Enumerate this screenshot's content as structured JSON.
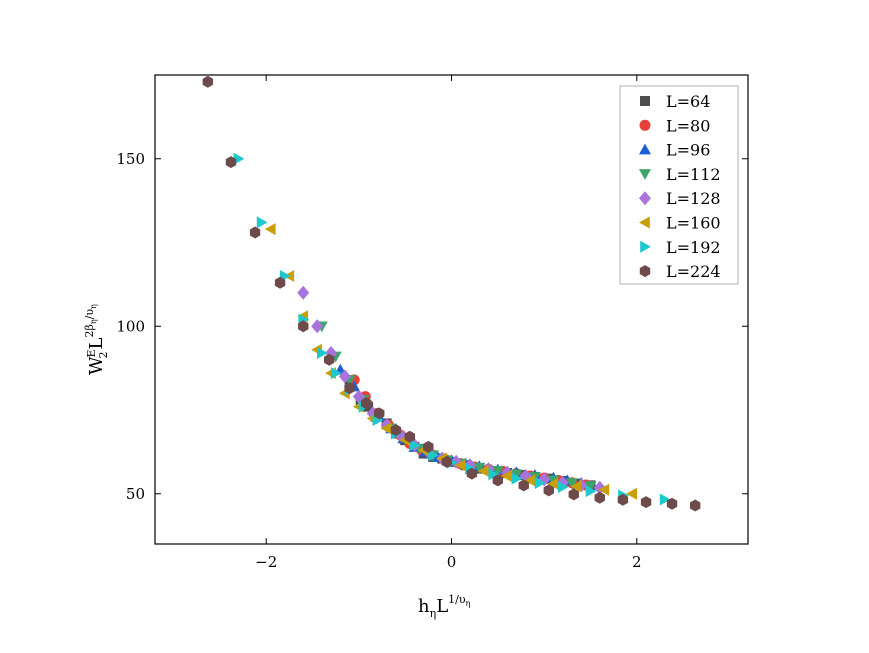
{
  "chart_data": {
    "type": "scatter",
    "xlim": [
      -3.2,
      3.2
    ],
    "ylim": [
      35,
      175
    ],
    "xticks": [
      {
        "value": -2,
        "label": "−2"
      },
      {
        "value": 0,
        "label": "0"
      },
      {
        "value": 2,
        "label": "2"
      }
    ],
    "yticks": [
      {
        "value": 50,
        "label": "50"
      },
      {
        "value": 100,
        "label": "100"
      },
      {
        "value": 150,
        "label": "150"
      }
    ],
    "xlabel": {
      "base1": "h",
      "sub1": "η",
      "base2": "L",
      "sup": "1/υ",
      "supsub": "η"
    },
    "ylabel": {
      "base1": "W",
      "sub1": "2",
      "sup1": "E",
      "base2": "L",
      "sup2": "2β",
      "sup2sub": "η",
      "sup2tail": "/υ",
      "sup2tailsub": "η"
    },
    "grid": false,
    "legend_position": "top-right",
    "series": [
      {
        "name": "L=64",
        "marker": "square",
        "color": "#4d4d4d",
        "points": [
          [
            -1.1,
            83
          ],
          [
            -0.98,
            78
          ],
          [
            -0.9,
            76
          ],
          [
            -0.82,
            73
          ],
          [
            -0.7,
            71
          ],
          [
            -0.6,
            68
          ],
          [
            -0.5,
            66
          ],
          [
            -0.4,
            64
          ],
          [
            -0.3,
            62
          ],
          [
            -0.2,
            61
          ],
          [
            -0.1,
            60.5
          ],
          [
            0.0,
            59.5
          ],
          [
            0.15,
            58.5
          ],
          [
            0.3,
            57.5
          ],
          [
            0.45,
            56.8
          ],
          [
            0.6,
            56.2
          ],
          [
            0.75,
            55.6
          ],
          [
            0.9,
            55
          ],
          [
            1.05,
            54.5
          ],
          [
            1.2,
            53.8
          ],
          [
            1.35,
            53
          ],
          [
            1.5,
            52.5
          ]
        ]
      },
      {
        "name": "L=80",
        "marker": "circle",
        "color": "#e8403a",
        "points": [
          [
            -1.05,
            84
          ],
          [
            -0.93,
            79
          ],
          [
            -0.8,
            74
          ],
          [
            -0.68,
            70.5
          ],
          [
            -0.55,
            67.5
          ],
          [
            -0.45,
            65
          ],
          [
            -0.32,
            63
          ],
          [
            -0.2,
            61.5
          ],
          [
            -0.05,
            60
          ],
          [
            0.1,
            59
          ],
          [
            0.25,
            58
          ],
          [
            0.4,
            57.3
          ],
          [
            0.55,
            56.7
          ],
          [
            0.7,
            56
          ],
          [
            0.85,
            55.3
          ],
          [
            1.0,
            54.7
          ],
          [
            1.15,
            54
          ],
          [
            1.3,
            53.3
          ],
          [
            1.45,
            52.6
          ]
        ]
      },
      {
        "name": "L=96",
        "marker": "triangle-up",
        "color": "#1a5fd6",
        "points": [
          [
            -1.2,
            87
          ],
          [
            -1.05,
            82
          ],
          [
            -0.92,
            77.5
          ],
          [
            -0.78,
            73
          ],
          [
            -0.65,
            69.5
          ],
          [
            -0.52,
            66.5
          ],
          [
            -0.4,
            64
          ],
          [
            -0.28,
            62.5
          ],
          [
            -0.15,
            61
          ],
          [
            0.0,
            60
          ],
          [
            0.15,
            59
          ],
          [
            0.3,
            58.2
          ],
          [
            0.5,
            57.2
          ],
          [
            0.7,
            56.4
          ],
          [
            0.9,
            55.6
          ],
          [
            1.1,
            54.8
          ],
          [
            1.25,
            54
          ],
          [
            1.4,
            53.2
          ]
        ]
      },
      {
        "name": "L=112",
        "marker": "triangle-down",
        "color": "#3ca66a",
        "points": [
          [
            -1.4,
            100
          ],
          [
            -1.25,
            91
          ],
          [
            -1.1,
            84
          ],
          [
            -0.95,
            78
          ],
          [
            -0.8,
            73.5
          ],
          [
            -0.65,
            69.5
          ],
          [
            -0.5,
            66.5
          ],
          [
            -0.35,
            63.5
          ],
          [
            -0.2,
            61.5
          ],
          [
            -0.05,
            60
          ],
          [
            0.1,
            59
          ],
          [
            0.3,
            57.8
          ],
          [
            0.5,
            56.8
          ],
          [
            0.7,
            55.8
          ],
          [
            0.9,
            55
          ],
          [
            1.1,
            54
          ],
          [
            1.3,
            53.2
          ],
          [
            1.5,
            52.3
          ]
        ]
      },
      {
        "name": "L=128",
        "marker": "diamond",
        "color": "#a874dc",
        "points": [
          [
            -1.6,
            110
          ],
          [
            -1.45,
            100
          ],
          [
            -1.3,
            92
          ],
          [
            -1.15,
            85
          ],
          [
            -1.0,
            79
          ],
          [
            -0.85,
            74
          ],
          [
            -0.7,
            70.5
          ],
          [
            -0.55,
            67.5
          ],
          [
            -0.4,
            64.5
          ],
          [
            -0.25,
            62.5
          ],
          [
            -0.1,
            60.5
          ],
          [
            0.05,
            59.5
          ],
          [
            0.2,
            58.5
          ],
          [
            0.4,
            57.3
          ],
          [
            0.6,
            56.3
          ],
          [
            0.8,
            55.3
          ],
          [
            1.0,
            54.3
          ],
          [
            1.2,
            53.3
          ],
          [
            1.4,
            52.5
          ],
          [
            1.6,
            51.8
          ]
        ]
      },
      {
        "name": "L=160",
        "marker": "triangle-left",
        "color": "#c8a005",
        "points": [
          [
            -1.95,
            129
          ],
          [
            -1.75,
            115
          ],
          [
            -1.6,
            103
          ],
          [
            -1.45,
            93
          ],
          [
            -1.3,
            86
          ],
          [
            -1.15,
            80
          ],
          [
            -1.0,
            76
          ],
          [
            -0.85,
            72.5
          ],
          [
            -0.7,
            69.5
          ],
          [
            -0.5,
            66
          ],
          [
            -0.3,
            63
          ],
          [
            -0.1,
            60.5
          ],
          [
            0.1,
            58.5
          ],
          [
            0.35,
            56.8
          ],
          [
            0.6,
            55.3
          ],
          [
            0.85,
            54
          ],
          [
            1.1,
            53
          ],
          [
            1.35,
            52.2
          ],
          [
            1.65,
            51.2
          ],
          [
            1.95,
            50
          ]
        ]
      },
      {
        "name": "L=192",
        "marker": "triangle-right",
        "color": "#1cc9cc",
        "points": [
          [
            -2.3,
            150
          ],
          [
            -2.05,
            131
          ],
          [
            -1.8,
            115
          ],
          [
            -1.6,
            102
          ],
          [
            -1.4,
            92
          ],
          [
            -1.25,
            86
          ],
          [
            -1.1,
            81
          ],
          [
            -0.95,
            76
          ],
          [
            -0.8,
            72
          ],
          [
            -0.6,
            68
          ],
          [
            -0.4,
            64.5
          ],
          [
            -0.2,
            61.5
          ],
          [
            0.0,
            59.3
          ],
          [
            0.2,
            57.5
          ],
          [
            0.45,
            55.8
          ],
          [
            0.7,
            54.5
          ],
          [
            0.95,
            53.2
          ],
          [
            1.2,
            52
          ],
          [
            1.5,
            50.8
          ],
          [
            1.85,
            49.5
          ],
          [
            2.3,
            48.3
          ]
        ]
      },
      {
        "name": "L=224",
        "marker": "hexagon",
        "color": "#6e4a4a",
        "points": [
          [
            -2.63,
            173
          ],
          [
            -2.38,
            149
          ],
          [
            -2.12,
            128
          ],
          [
            -1.85,
            113
          ],
          [
            -1.6,
            100
          ],
          [
            -1.32,
            90
          ],
          [
            -1.1,
            81.5
          ],
          [
            -0.92,
            77
          ],
          [
            -0.78,
            74
          ],
          [
            -0.6,
            69
          ],
          [
            -0.45,
            67
          ],
          [
            -0.25,
            64
          ],
          [
            -0.05,
            59.5
          ],
          [
            0.22,
            56
          ],
          [
            0.5,
            54
          ],
          [
            0.78,
            52.5
          ],
          [
            1.05,
            51
          ],
          [
            1.32,
            49.8
          ],
          [
            1.6,
            48.8
          ],
          [
            1.85,
            48.2
          ],
          [
            2.1,
            47.5
          ],
          [
            2.38,
            47
          ],
          [
            2.63,
            46.5
          ]
        ]
      }
    ]
  }
}
